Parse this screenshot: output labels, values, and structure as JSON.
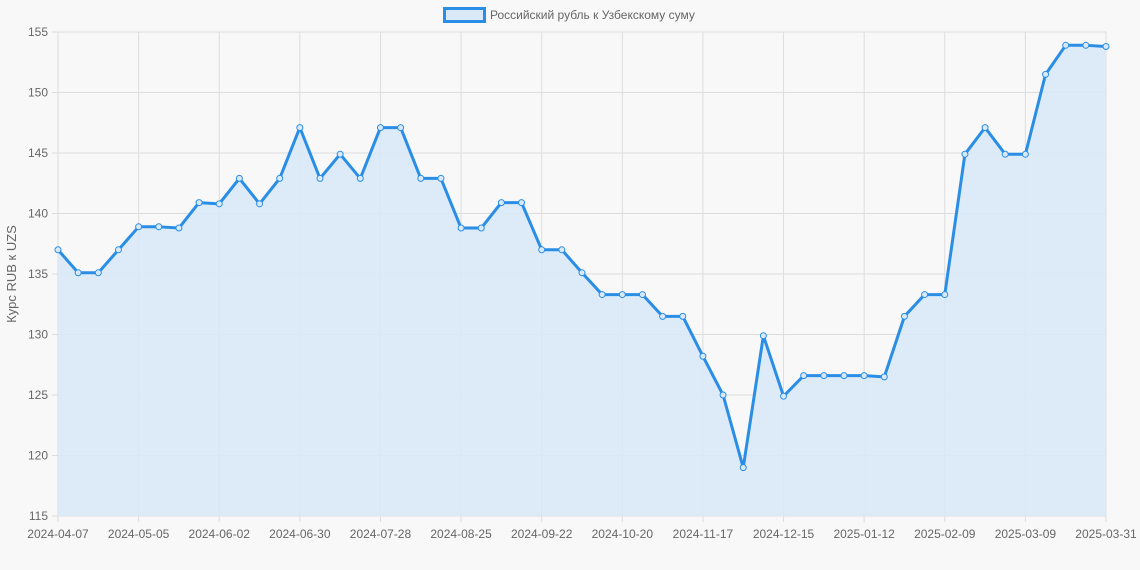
{
  "chart_data": {
    "type": "line",
    "filled": true,
    "title": "",
    "xlabel": "",
    "ylabel": "Курс RUB к UZS",
    "ylim": [
      115,
      155
    ],
    "y_ticks": [
      115,
      120,
      125,
      130,
      135,
      140,
      145,
      150,
      155
    ],
    "x_tick_labels": [
      "2024-04-07",
      "2024-05-05",
      "2024-06-02",
      "2024-06-30",
      "2024-07-28",
      "2024-08-25",
      "2024-09-22",
      "2024-10-20",
      "2024-11-17",
      "2024-12-15",
      "2025-01-12",
      "2025-02-09",
      "2025-03-09",
      "2025-03-31"
    ],
    "grid": true,
    "legend": "top",
    "series": [
      {
        "name": "Российский рубль к Узбекскому суму",
        "color": "#2a8ee6",
        "fill": "#d9e9f8",
        "values": [
          137.0,
          135.1,
          135.1,
          137.0,
          138.9,
          138.9,
          138.8,
          140.9,
          140.8,
          142.9,
          140.8,
          142.9,
          147.1,
          142.9,
          144.9,
          142.9,
          147.1,
          147.1,
          142.9,
          142.9,
          138.8,
          138.8,
          140.9,
          140.9,
          137.0,
          137.0,
          135.1,
          133.3,
          133.3,
          133.3,
          131.5,
          131.5,
          128.2,
          125.0,
          119.0,
          129.9,
          124.9,
          126.6,
          126.6,
          126.6,
          126.6,
          126.5,
          131.5,
          133.3,
          133.3,
          144.9,
          147.1,
          144.9,
          144.9,
          151.5,
          153.9,
          153.9,
          153.8
        ]
      }
    ]
  }
}
